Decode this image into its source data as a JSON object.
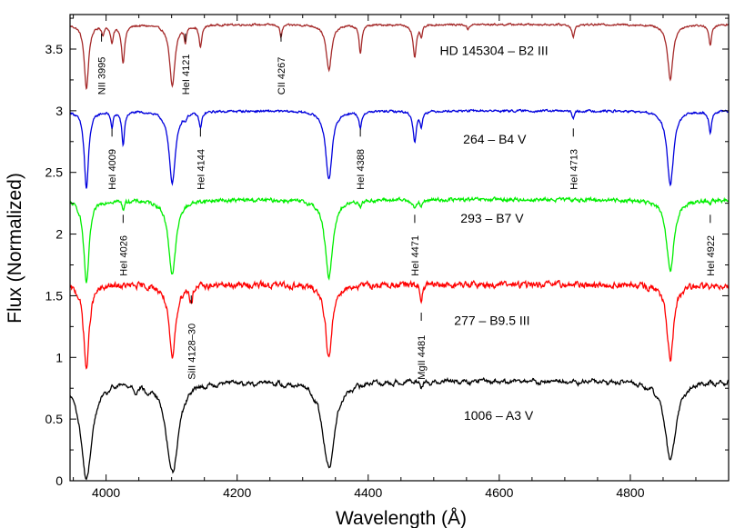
{
  "chart_data": {
    "type": "line",
    "xlabel": "Wavelength (Å)",
    "ylabel": "Flux (Normalized)",
    "xlim": [
      3945,
      4950
    ],
    "ylim": [
      0,
      3.78
    ],
    "xticks": [
      4000,
      4200,
      4400,
      4600,
      4800
    ],
    "xtick_labels": [
      "4000",
      "4200",
      "4400",
      "4600",
      "4800"
    ],
    "yticks": [
      0,
      0.5,
      1,
      1.5,
      2,
      2.5,
      3,
      3.5
    ],
    "ytick_labels": [
      "0",
      "0.5",
      "1",
      "1.5",
      "2",
      "2.5",
      "3",
      "3.5"
    ],
    "grid": false,
    "series": [
      {
        "name": "HD 145304 – B2 III",
        "color": "#a52a2a",
        "continuum": 3.7,
        "slope": 0.0,
        "noise": 0.006,
        "blanket": 0.0,
        "lines": [
          [
            3970,
            0.52,
            4
          ],
          [
            3995,
            0.07,
            2
          ],
          [
            4009,
            0.14,
            2.5
          ],
          [
            4026,
            0.3,
            3
          ],
          [
            4101,
            0.5,
            5
          ],
          [
            4121,
            0.12,
            2
          ],
          [
            4144,
            0.18,
            2.5
          ],
          [
            4267,
            0.1,
            2
          ],
          [
            4340,
            0.37,
            5
          ],
          [
            4388,
            0.23,
            2.5
          ],
          [
            4471,
            0.27,
            3
          ],
          [
            4481,
            0.09,
            2
          ],
          [
            4552,
            0.04,
            2
          ],
          [
            4713,
            0.1,
            2.5
          ],
          [
            4861,
            0.44,
            5
          ],
          [
            4922,
            0.17,
            2.5
          ]
        ]
      },
      {
        "name": "264 – B4 V",
        "color": "#0000dd",
        "continuum": 3.0,
        "slope": 0.0,
        "noise": 0.007,
        "blanket": 0.0,
        "lines": [
          [
            3970,
            0.63,
            4
          ],
          [
            4009,
            0.13,
            2
          ],
          [
            4026,
            0.27,
            2.5
          ],
          [
            4101,
            0.58,
            6
          ],
          [
            4121,
            0.04,
            2
          ],
          [
            4144,
            0.13,
            2.5
          ],
          [
            4340,
            0.55,
            6
          ],
          [
            4388,
            0.14,
            2.5
          ],
          [
            4471,
            0.25,
            3
          ],
          [
            4481,
            0.12,
            2
          ],
          [
            4713,
            0.06,
            2
          ],
          [
            4861,
            0.6,
            6
          ],
          [
            4922,
            0.17,
            2.5
          ]
        ]
      },
      {
        "name": "293 – B7 V",
        "color": "#00ee00",
        "continuum": 2.28,
        "slope": 0.0,
        "noise": 0.012,
        "blanket": 0.0,
        "lines": [
          [
            3970,
            0.68,
            5
          ],
          [
            4026,
            0.07,
            2
          ],
          [
            4101,
            0.6,
            7
          ],
          [
            4340,
            0.63,
            7
          ],
          [
            4388,
            0.04,
            2
          ],
          [
            4471,
            0.08,
            2.5
          ],
          [
            4481,
            0.06,
            2
          ],
          [
            4861,
            0.58,
            7
          ],
          [
            4922,
            0.04,
            2
          ]
        ]
      },
      {
        "name": "277 – B9.5 III",
        "color": "#ff0000",
        "continuum": 1.59,
        "slope": 0.0,
        "noise": 0.02,
        "blanket": 0.0,
        "lines": [
          [
            3970,
            0.68,
            5
          ],
          [
            4101,
            0.6,
            6
          ],
          [
            4128,
            0.08,
            1.5
          ],
          [
            4131,
            0.1,
            1.5
          ],
          [
            4340,
            0.6,
            6
          ],
          [
            4481,
            0.14,
            2
          ],
          [
            4861,
            0.62,
            6
          ],
          [
            4922,
            0.03,
            2
          ]
        ]
      },
      {
        "name": "1006 – A3 V",
        "color": "#000000",
        "continuum": 0.82,
        "slope": 0.0,
        "noise": 0.012,
        "blanket": 0.03,
        "lines": [
          [
            3970,
            0.8,
            10
          ],
          [
            4101,
            0.73,
            11
          ],
          [
            4340,
            0.7,
            11
          ],
          [
            4861,
            0.64,
            10
          ],
          [
            4481,
            0.04,
            2
          ],
          [
            4045,
            0.04,
            3
          ],
          [
            4064,
            0.04,
            3
          ]
        ]
      }
    ],
    "series_label_pos": [
      {
        "x": 4592,
        "y": 3.49
      },
      {
        "x": 4593,
        "y": 2.77
      },
      {
        "x": 4589,
        "y": 2.13
      },
      {
        "x": 4589,
        "y": 1.3
      },
      {
        "x": 4599,
        "y": 0.53
      }
    ],
    "annotations": [
      {
        "text": "NII 3995",
        "x": 3993,
        "y": 3.13
      },
      {
        "text": "HeI 4121",
        "x": 4121,
        "y": 3.13
      },
      {
        "text": "CII 4267",
        "x": 4267,
        "y": 3.13
      },
      {
        "text": "HeI 4009",
        "x": 4009,
        "y": 2.36
      },
      {
        "text": "HeI 4144",
        "x": 4144,
        "y": 2.36
      },
      {
        "text": "HeI 4388",
        "x": 4388,
        "y": 2.36
      },
      {
        "text": "HeI 4713",
        "x": 4713,
        "y": 2.36
      },
      {
        "text": "HeI 4026",
        "x": 4026,
        "y": 1.66
      },
      {
        "text": "HeI 4471",
        "x": 4471,
        "y": 1.66
      },
      {
        "text": "HeI 4922",
        "x": 4922,
        "y": 1.66
      },
      {
        "text": "SiII 4128–30",
        "x": 4130,
        "y": 0.82
      },
      {
        "text": "MgII 4481",
        "x": 4481,
        "y": 0.82
      }
    ]
  }
}
